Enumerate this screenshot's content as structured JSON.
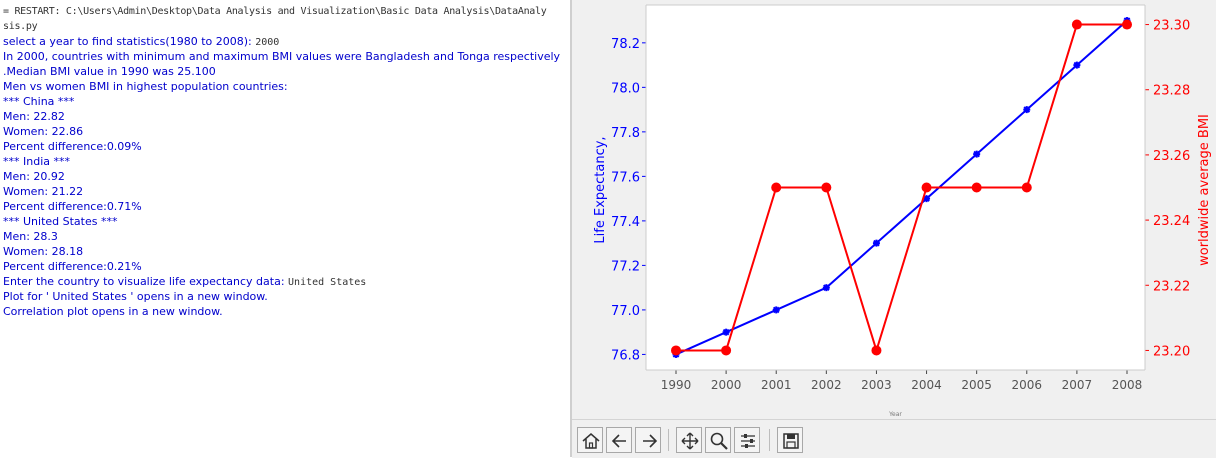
{
  "console": {
    "lines": [
      {
        "kind": "sys",
        "text": "= RESTART: C:\\Users\\Admin\\Desktop\\Data Analysis  and Visualization\\Basic Data Analysis\\DataAnaly"
      },
      {
        "kind": "sys",
        "text": "sis.py"
      },
      {
        "kind": "prompt",
        "text": "select a year to find statistics(1980 to 2008): ",
        "input": "2000"
      },
      {
        "kind": "out",
        "text": "In 2000, countries with minimum and maximum BMI values were Bangladesh  and  Tonga respectively"
      },
      {
        "kind": "out",
        "text": ".Median BMI value in 1990 was 25.100"
      },
      {
        "kind": "out",
        "text": "Men vs women BMI in highest population countries:"
      },
      {
        "kind": "out",
        "text": "*** China ***"
      },
      {
        "kind": "out",
        "text": "Men:    22.82"
      },
      {
        "kind": "out",
        "text": "Women:    22.86"
      },
      {
        "kind": "out",
        "text": "Percent difference:0.09%"
      },
      {
        "kind": "out",
        "text": "*** India ***"
      },
      {
        "kind": "out",
        "text": "Men:    20.92"
      },
      {
        "kind": "out",
        "text": "Women:    21.22"
      },
      {
        "kind": "out",
        "text": "Percent difference:0.71%"
      },
      {
        "kind": "out",
        "text": "*** United States ***"
      },
      {
        "kind": "out",
        "text": "Men:    28.3"
      },
      {
        "kind": "out",
        "text": "Women:    28.18"
      },
      {
        "kind": "out",
        "text": "Percent difference:0.21%"
      },
      {
        "kind": "prompt",
        "text": "Enter the country to visualize life expectancy data: ",
        "input": "United States"
      },
      {
        "kind": "out",
        "text": "Plot for ' United States ' opens in a new window."
      },
      {
        "kind": "out",
        "text": "Correlation plot opens in a new window."
      }
    ]
  },
  "toolbar": {
    "buttons": [
      {
        "name": "home-button",
        "icon": "home-icon"
      },
      {
        "name": "back-button",
        "icon": "arrow-left-icon"
      },
      {
        "name": "forward-button",
        "icon": "arrow-right-icon"
      },
      {
        "name": "pan-button",
        "icon": "move-icon"
      },
      {
        "name": "zoom-button",
        "icon": "magnifier-icon"
      },
      {
        "name": "configure-subplots-button",
        "icon": "sliders-icon"
      },
      {
        "name": "save-figure-button",
        "icon": "floppy-disk-icon"
      }
    ]
  },
  "colors": {
    "console_text": "#0000cc",
    "life": "#0000ff",
    "bmi": "#ff0000"
  },
  "chart_data": {
    "type": "line",
    "categories": [
      "1990",
      "2000",
      "2001",
      "2002",
      "2003",
      "2004",
      "2005",
      "2006",
      "2007",
      "2008"
    ],
    "xlabel": "Year",
    "series": [
      {
        "axis": "left",
        "ylabel": "Life Expectancy,",
        "color": "#0000ff",
        "marker": "star",
        "values": [
          76.8,
          76.9,
          77.0,
          77.1,
          77.3,
          77.5,
          77.7,
          77.9,
          78.1,
          78.3
        ],
        "ylim": [
          76.73,
          78.37
        ],
        "ticks": [
          "76.8",
          "77.0",
          "77.2",
          "77.4",
          "77.6",
          "77.8",
          "78.0",
          "78.2"
        ]
      },
      {
        "axis": "right",
        "ylabel": "worldwide average BMI",
        "color": "#ff0000",
        "marker": "circle",
        "values": [
          23.2,
          23.2,
          23.25,
          23.25,
          23.2,
          23.25,
          23.25,
          23.25,
          23.3,
          23.3
        ],
        "ylim": [
          23.194,
          23.306
        ],
        "ticks": [
          "23.20",
          "23.22",
          "23.24",
          "23.26",
          "23.28",
          "23.30"
        ]
      }
    ],
    "grid": false,
    "legend": "none"
  }
}
